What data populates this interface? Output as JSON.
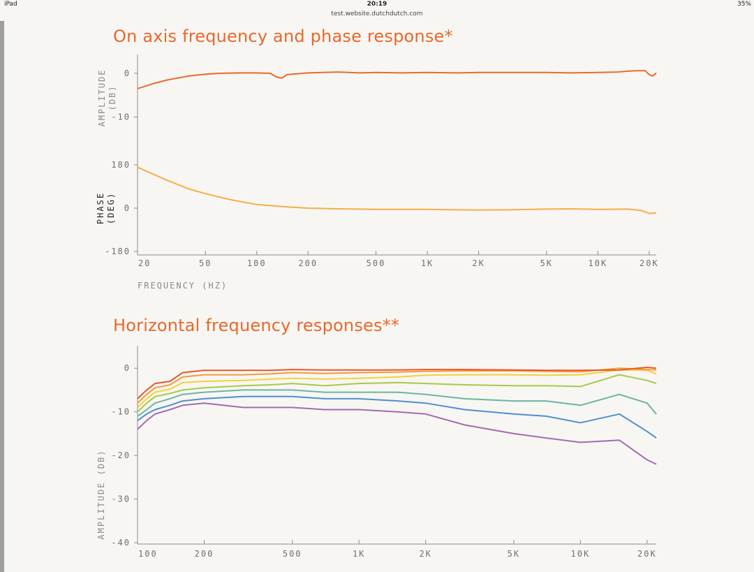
{
  "status_bar": {
    "device": "iPad",
    "time": "20:19",
    "url": "test.website.dutchdutch.com",
    "battery": "35%"
  },
  "section1": {
    "title": "On axis frequency and phase response*"
  },
  "section2": {
    "title": "Horizontal frequency responses**"
  },
  "colors": {
    "accent": "#e8682a",
    "amplitude": "#ea6a2c",
    "phase": "#f6ad48",
    "series": [
      "#e9582a",
      "#f59b3a",
      "#f2d23a",
      "#a9c84a",
      "#6bb5a4",
      "#4e8fcf",
      "#a56ab2"
    ]
  },
  "chart_data": [
    {
      "type": "line",
      "title": "On axis frequency and phase response*",
      "panels": [
        {
          "name": "amplitude",
          "ylabel": "AMPLITUDE (DB)",
          "ylabel_lines": [
            "AMPLITUDE",
            "(DB)"
          ],
          "ylim": [
            -20,
            4
          ],
          "ytick_labels": [
            "0",
            "-10"
          ],
          "series": [
            {
              "name": "amplitude",
              "x": [
                20,
                25,
                30,
                40,
                50,
                60,
                80,
                100,
                120,
                130,
                140,
                150,
                200,
                300,
                400,
                500,
                700,
                1000,
                1500,
                2000,
                3000,
                5000,
                7000,
                10000,
                13000,
                15000,
                17000,
                19000,
                20000,
                21000,
                22000
              ],
              "y": [
                -3.5,
                -2.3,
                -1.5,
                -0.6,
                -0.2,
                0,
                0.1,
                0.1,
                0,
                -0.8,
                -1.1,
                -0.3,
                0.1,
                0.3,
                0.1,
                0.2,
                0.1,
                0.2,
                0.1,
                0.2,
                0.2,
                0.2,
                0.1,
                0.2,
                0.3,
                0.5,
                0.6,
                0.6,
                -0.3,
                -0.6,
                0.1
              ]
            }
          ]
        },
        {
          "name": "phase",
          "ylabel": "PHASE (DEG)",
          "ylabel_lines": [
            "PHASE",
            "(DEG)"
          ],
          "ylim": [
            -180,
            180
          ],
          "ytick_labels": [
            "180",
            "0",
            "-180"
          ],
          "series": [
            {
              "name": "phase",
              "x": [
                20,
                30,
                40,
                50,
                70,
                100,
                150,
                200,
                300,
                500,
                1000,
                1500,
                2000,
                3000,
                5000,
                7000,
                10000,
                15000,
                18000,
                20000,
                22000
              ],
              "y": [
                170,
                115,
                80,
                60,
                35,
                15,
                5,
                0,
                -3,
                -5,
                -5,
                -7,
                -8,
                -7,
                -4,
                -3,
                -5,
                -4,
                -10,
                -22,
                -20
              ]
            }
          ]
        }
      ],
      "xscale": "log",
      "xlim": [
        20,
        22000
      ],
      "xtick_labels": [
        "20",
        "50",
        "100",
        "200",
        "500",
        "1K",
        "2K",
        "5K",
        "10K",
        "20K"
      ],
      "xlabel": "FREQUENCY (HZ)"
    },
    {
      "type": "line",
      "title": "Horizontal frequency responses**",
      "xscale": "log",
      "xlim": [
        100,
        22000
      ],
      "ylim": [
        -40,
        5
      ],
      "xtick_labels": [
        "100",
        "200",
        "500",
        "1K",
        "2K",
        "5K",
        "10K",
        "20K"
      ],
      "ytick_labels": [
        "0",
        "-10",
        "-20",
        "-30",
        "-40"
      ],
      "ylabel": "AMPLITUDE (DB)",
      "series": [
        {
          "name": "series-1",
          "x": [
            100,
            110,
            120,
            140,
            160,
            200,
            300,
            400,
            500,
            700,
            1000,
            1500,
            2000,
            3000,
            5000,
            7000,
            10000,
            15000,
            20000,
            22000
          ],
          "y": [
            -7,
            -5,
            -3.5,
            -3,
            -1,
            -0.5,
            -0.5,
            -0.5,
            -0.3,
            -0.4,
            -0.4,
            -0.4,
            -0.3,
            -0.3,
            -0.4,
            -0.5,
            -0.5,
            -0.4,
            0.2,
            0
          ]
        },
        {
          "name": "series-2",
          "x": [
            100,
            110,
            120,
            140,
            160,
            200,
            300,
            400,
            500,
            700,
            1000,
            1500,
            2000,
            3000,
            5000,
            7000,
            10000,
            15000,
            20000,
            22000
          ],
          "y": [
            -8,
            -6,
            -4.5,
            -3.8,
            -2,
            -1.5,
            -1.5,
            -1.3,
            -1,
            -1.2,
            -1,
            -0.9,
            -0.7,
            -0.6,
            -0.6,
            -0.7,
            -0.8,
            0,
            -0.3,
            -0.4
          ]
        },
        {
          "name": "series-3",
          "x": [
            100,
            110,
            120,
            140,
            160,
            200,
            300,
            400,
            500,
            700,
            1000,
            1500,
            2000,
            3000,
            5000,
            7000,
            10000,
            15000,
            20000,
            22000
          ],
          "y": [
            -9,
            -7,
            -5.5,
            -4.8,
            -3.3,
            -3,
            -2.8,
            -2.5,
            -2.3,
            -2.5,
            -2.3,
            -2,
            -1.6,
            -1.5,
            -1.5,
            -1.6,
            -1.5,
            -0.4,
            -0.5,
            -1.3
          ]
        },
        {
          "name": "series-4",
          "x": [
            100,
            110,
            120,
            140,
            160,
            200,
            300,
            400,
            500,
            700,
            1000,
            1500,
            2000,
            3000,
            5000,
            7000,
            10000,
            15000,
            20000,
            22000
          ],
          "y": [
            -10,
            -8,
            -6.5,
            -5.8,
            -5,
            -4.5,
            -4,
            -3.8,
            -3.5,
            -4,
            -3.5,
            -3.3,
            -3.5,
            -3.8,
            -4,
            -4,
            -4.2,
            -1.5,
            -2.8,
            -3.5
          ]
        },
        {
          "name": "series-5",
          "x": [
            100,
            110,
            120,
            140,
            160,
            200,
            300,
            400,
            500,
            700,
            1000,
            1500,
            2000,
            3000,
            5000,
            7000,
            10000,
            15000,
            20000,
            22000
          ],
          "y": [
            -11,
            -9.5,
            -8,
            -7,
            -6,
            -5.5,
            -5,
            -5,
            -5,
            -5.5,
            -5.5,
            -5.5,
            -6,
            -7,
            -7.5,
            -7.5,
            -8.5,
            -6,
            -8,
            -10.5
          ]
        },
        {
          "name": "series-6",
          "x": [
            100,
            110,
            120,
            140,
            160,
            200,
            300,
            400,
            500,
            700,
            1000,
            1500,
            2000,
            3000,
            5000,
            7000,
            10000,
            15000,
            20000,
            22000
          ],
          "y": [
            -12,
            -10.5,
            -9.5,
            -8.5,
            -7.5,
            -7,
            -6.5,
            -6.5,
            -6.5,
            -7,
            -7,
            -7.5,
            -8,
            -9.5,
            -10.5,
            -11,
            -12.5,
            -10.5,
            -14.5,
            -16
          ]
        },
        {
          "name": "series-7",
          "x": [
            100,
            110,
            120,
            140,
            160,
            200,
            300,
            400,
            500,
            700,
            1000,
            1500,
            2000,
            3000,
            5000,
            7000,
            10000,
            15000,
            20000,
            22000
          ],
          "y": [
            -14,
            -12,
            -10.5,
            -9.5,
            -8.5,
            -8,
            -9,
            -9,
            -9,
            -9.5,
            -9.5,
            -10,
            -10.5,
            -13,
            -15,
            -16,
            -17,
            -16.5,
            -21,
            -22
          ]
        }
      ]
    }
  ]
}
